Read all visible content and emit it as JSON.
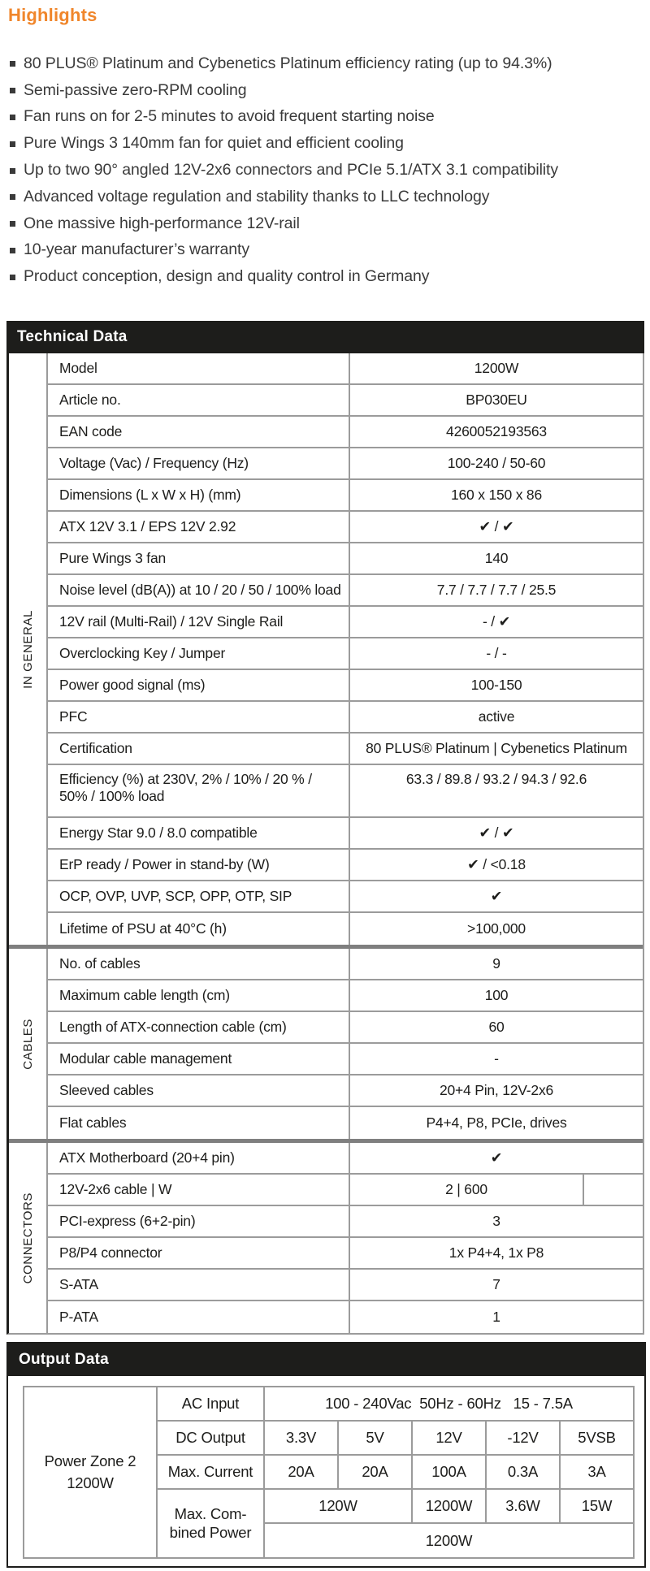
{
  "colors": {
    "accent_orange": "#F0862B",
    "header_bar_black": "#1D1D1B",
    "grid_line_gray": "#9B9B9B",
    "section_separator_gray": "#7F7F7F",
    "body_text": "#3A3A3A"
  },
  "highlights": {
    "title": "Highlights",
    "items": [
      "80 PLUS® Platinum and Cybenetics Platinum efficiency rating (up to 94.3%)",
      "Semi-passive zero-RPM cooling",
      "Fan runs on for 2-5 minutes to avoid frequent starting noise",
      "Pure Wings 3 140mm fan for quiet and efficient cooling",
      "Up to two 90° angled 12V-2x6 connectors and PCIe 5.1/ATX 3.1 compatibility",
      "Advanced voltage regulation and stability thanks to LLC technology",
      "One massive high-performance 12V-rail",
      "10-year manufacturer’s warranty",
      "Product conception, design and quality control in Germany"
    ]
  },
  "technical": {
    "title": "Technical Data",
    "sections": [
      {
        "label": "IN GENERAL",
        "rows": [
          {
            "label": "Model",
            "value": "1200W"
          },
          {
            "label": "Article no.",
            "value": "BP030EU"
          },
          {
            "label": "EAN code",
            "value": "4260052193563"
          },
          {
            "label": "Voltage (Vac) / Frequency (Hz)",
            "value": "100-240 / 50-60"
          },
          {
            "label": "Dimensions (L x W x H) (mm)",
            "value": "160 x 150 x 86"
          },
          {
            "label": "ATX 12V 3.1 / EPS 12V 2.92",
            "value": "✔ / ✔"
          },
          {
            "label": "Pure Wings 3 fan",
            "value": "140"
          },
          {
            "label": "Noise level (dB(A)) at 10 / 20 / 50 / 100% load",
            "value": "7.7 / 7.7 / 7.7 / 25.5"
          },
          {
            "label": "12V rail (Multi-Rail) / 12V Single Rail",
            "value": "- / ✔"
          },
          {
            "label": "Overclocking Key / Jumper",
            "value": "- / -"
          },
          {
            "label": "Power good signal (ms)",
            "value": "100-150"
          },
          {
            "label": "PFC",
            "value": "active"
          },
          {
            "label": "Certification",
            "value": "80 PLUS® Platinum | Cybenetics Platinum"
          },
          {
            "label": "Efficiency (%) at 230V, 2% / 10% / 20 % /\n50% / 100% load",
            "value": "63.3 / 89.8 / 93.2 / 94.3 / 92.6",
            "tall": true
          },
          {
            "label": "Energy Star 9.0 / 8.0 compatible",
            "value": "✔ / ✔"
          },
          {
            "label": "ErP ready / Power in stand-by (W)",
            "value": "✔ / <0.18"
          },
          {
            "label": "OCP, OVP, UVP, SCP, OPP, OTP, SIP",
            "value": "✔"
          },
          {
            "label": "Lifetime of PSU at 40°C (h)",
            "value": ">100,000"
          }
        ]
      },
      {
        "label": "CABLES",
        "rows": [
          {
            "label": "No. of cables",
            "value": "9"
          },
          {
            "label": "Maximum cable length (cm)",
            "value": "100"
          },
          {
            "label": "Length of ATX-connection cable (cm)",
            "value": "60"
          },
          {
            "label": "Modular cable management",
            "value": "-"
          },
          {
            "label": "Sleeved cables",
            "value": "20+4 Pin, 12V-2x6"
          },
          {
            "label": "Flat cables",
            "value": "P4+4, P8, PCIe, drives"
          }
        ]
      },
      {
        "label": "CONNECTORS",
        "rows": [
          {
            "label": "ATX Motherboard (20+4 pin)",
            "value": "✔"
          },
          {
            "label": "12V-2x6 cable | W",
            "value": "2 | 600",
            "split": true
          },
          {
            "label": "PCI-express (6+2-pin)",
            "value": "3"
          },
          {
            "label": "P8/P4 connector",
            "value": "1x P4+4, 1x P8"
          },
          {
            "label": "S-ATA",
            "value": "7"
          },
          {
            "label": "P-ATA",
            "value": "1"
          }
        ]
      }
    ]
  },
  "output": {
    "title": "Output Data",
    "zone_label": "Power Zone 2",
    "zone_watts": "1200W",
    "row_labels": [
      "AC Input",
      "DC Output",
      "Max. Current",
      "Max. Com-\nbined Power"
    ],
    "ac_input": "100 - 240Vac  50Hz - 60Hz   15 - 7.5A",
    "dc_output": [
      "3.3V",
      "5V",
      "12V",
      "-12V",
      "5VSB"
    ],
    "max_current": [
      "20A",
      "20A",
      "100A",
      "0.3A",
      "3A"
    ],
    "combined_power": [
      "120W",
      "1200W",
      "3.6W",
      "15W"
    ],
    "combined_total": "1200W"
  }
}
